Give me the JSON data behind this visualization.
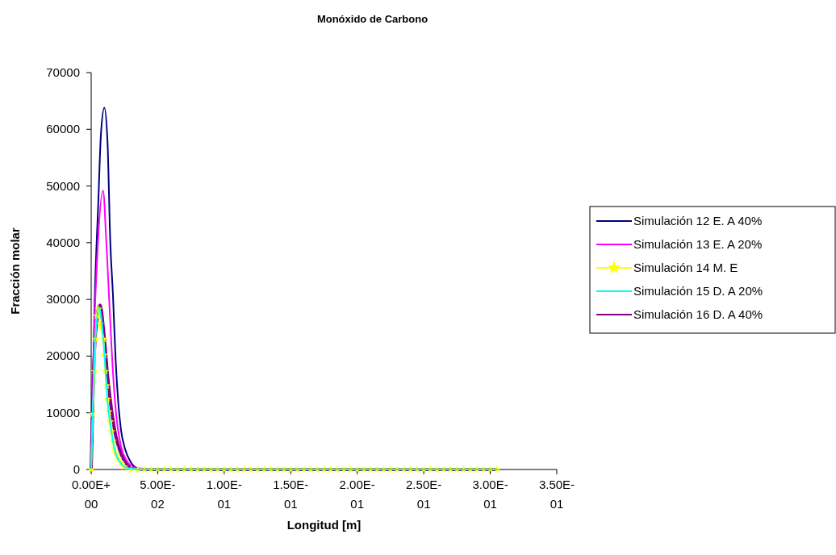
{
  "chart_data": {
    "type": "line",
    "title": "Monóxido de Carbono",
    "xlabel": "Longitud [m]",
    "ylabel": "Fracción molar",
    "xlim": [
      0,
      0.35
    ],
    "xticks": [
      {
        "value": 0,
        "label": "0.00E+00"
      },
      {
        "value": 0.05,
        "label": "5.00E-02"
      },
      {
        "value": 0.1,
        "label": "1.00E-01"
      },
      {
        "value": 0.15,
        "label": "1.50E-01"
      },
      {
        "value": 0.2,
        "label": "2.00E-01"
      },
      {
        "value": 0.25,
        "label": "2.50E-01"
      },
      {
        "value": 0.3,
        "label": "3.00E-01"
      },
      {
        "value": 0.35,
        "label": "3.50E-01"
      }
    ],
    "ylim": [
      0,
      70000
    ],
    "yticks": [
      0,
      10000,
      20000,
      30000,
      40000,
      50000,
      60000,
      70000
    ],
    "grid": false,
    "legend": "right",
    "marker": "none",
    "line_style": "solid",
    "series": [
      {
        "name": "Simulación 12 E. A 40%",
        "color": "#000080",
        "x": [
          0,
          0.0026,
          0.0053,
          0.0073,
          0.0099,
          0.0123,
          0.0143,
          0.0164,
          0.0184,
          0.0204,
          0.0224,
          0.0255,
          0.0295,
          0.035,
          0.04,
          0.3055
        ],
        "values": [
          0,
          29700,
          46800,
          59000,
          63800,
          57600,
          40500,
          30600,
          19200,
          11700,
          7000,
          3600,
          1400,
          200,
          0,
          0
        ]
      },
      {
        "name": "Simulación 13 E. A 20%",
        "color": "#ff00ff",
        "x": [
          0,
          0.0022,
          0.0047,
          0.0089,
          0.0113,
          0.0133,
          0.0153,
          0.0174,
          0.0194,
          0.0224,
          0.0263,
          0.032,
          0.04,
          0.3055
        ],
        "values": [
          0,
          24000,
          38300,
          49200,
          40500,
          31100,
          21600,
          13500,
          8400,
          4100,
          1700,
          400,
          0,
          0
        ]
      },
      {
        "name": "Simulación 14 M. E",
        "color": "#ffff00",
        "marker": "star",
        "x": [
          0,
          0.0012,
          0.0026,
          0.0032,
          0.0042,
          0.0057,
          0.0067,
          0.0093,
          0.0099,
          0.0107,
          0.0117,
          0.0123,
          0.0133,
          0.0143,
          0.0153,
          0.0164,
          0.0174,
          0.0184,
          0.0204,
          0.0224,
          0.025,
          0.03,
          0.035,
          0.04,
          0.045,
          0.05,
          0.055,
          0.06,
          0.065,
          0.07,
          0.075,
          0.08,
          0.085,
          0.09,
          0.095,
          0.1,
          0.105,
          0.11,
          0.115,
          0.12,
          0.125,
          0.13,
          0.135,
          0.14,
          0.145,
          0.15,
          0.155,
          0.16,
          0.165,
          0.17,
          0.175,
          0.18,
          0.185,
          0.19,
          0.195,
          0.2,
          0.205,
          0.21,
          0.215,
          0.22,
          0.225,
          0.23,
          0.235,
          0.24,
          0.245,
          0.25,
          0.255,
          0.26,
          0.265,
          0.27,
          0.275,
          0.28,
          0.285,
          0.29,
          0.295,
          0.3,
          0.305
        ],
        "values": [
          0,
          9800,
          17300,
          23000,
          27100,
          28300,
          25600,
          23000,
          20200,
          17300,
          14800,
          12400,
          10200,
          8400,
          6700,
          5000,
          3800,
          2800,
          1900,
          1200,
          500,
          0,
          0,
          0,
          0,
          0,
          0,
          0,
          0,
          0,
          0,
          0,
          0,
          0,
          0,
          0,
          0,
          0,
          0,
          0,
          0,
          0,
          0,
          0,
          0,
          0,
          0,
          0,
          0,
          0,
          0,
          0,
          0,
          0,
          0,
          0,
          0,
          0,
          0,
          0,
          0,
          0,
          0,
          0,
          0,
          0,
          0,
          0,
          0,
          0,
          0,
          0,
          0,
          0,
          0,
          0,
          0
        ]
      },
      {
        "name": "Simulación 15 D. A 20%",
        "color": "#00ffff",
        "x": [
          0,
          0.0012,
          0.0032,
          0.006,
          0.0093,
          0.0123,
          0.0153,
          0.0184,
          0.0224,
          0.028,
          0.035,
          0.3055
        ],
        "values": [
          0,
          10000,
          23500,
          28500,
          22500,
          12000,
          6500,
          2800,
          1100,
          200,
          0,
          0
        ]
      },
      {
        "name": "Simulación 16 D. A 40%",
        "color": "#800080",
        "x": [
          0,
          0.0012,
          0.0032,
          0.0067,
          0.0093,
          0.0123,
          0.0153,
          0.0184,
          0.0224,
          0.0263,
          0.032,
          0.04,
          0.3055
        ],
        "values": [
          0,
          12000,
          24000,
          29000,
          24500,
          16500,
          10500,
          6000,
          2800,
          1100,
          200,
          0,
          0
        ]
      }
    ]
  }
}
